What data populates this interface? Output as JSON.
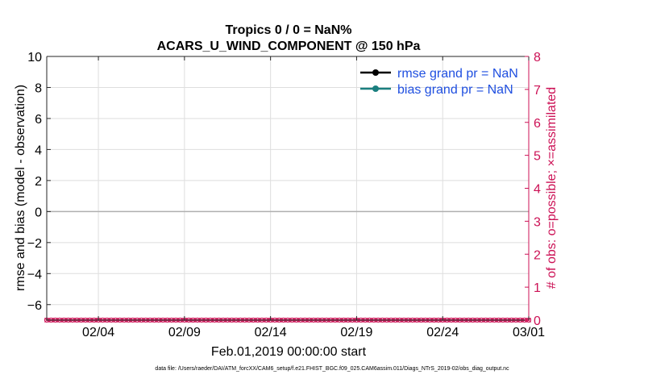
{
  "chart_data": {
    "type": "line",
    "title_line1": "Tropics 0 / 0 = NaN%",
    "title_line2": "ACARS_U_WIND_COMPONENT @ 150 hPa",
    "xlabel": "Feb.01,2019 00:00:00 start",
    "ylabel_left": "rmse and bias (model - observation)",
    "ylabel_right": "# of obs: o=possible; ×=assimilated",
    "xlim": [
      0,
      28
    ],
    "ylim_left": [
      -7,
      10
    ],
    "ylim_right": [
      0,
      8
    ],
    "x_tick_values": [
      3,
      8,
      13,
      18,
      23,
      28
    ],
    "x_tick_labels": [
      "02/04",
      "02/09",
      "02/14",
      "02/19",
      "02/24",
      "03/01"
    ],
    "y_left_ticks": [
      -6,
      -4,
      -2,
      0,
      2,
      4,
      6,
      8,
      10
    ],
    "y_right_ticks": [
      0,
      1,
      2,
      3,
      4,
      5,
      6,
      7,
      8
    ],
    "grid": true,
    "zero_line": 0,
    "legend": [
      {
        "label": "rmse grand pr = NaN",
        "color": "#000000"
      },
      {
        "label": "bias grand pr = NaN",
        "color": "#1a7f7f"
      }
    ],
    "legend_text_color": "#1f4fe0",
    "right_axis_color": "#cc1155",
    "obs_series": {
      "name": "# of obs",
      "color": "#cc1155",
      "x": [
        0,
        0.25,
        0.5,
        0.75,
        1,
        1.25,
        1.5,
        1.75,
        2,
        2.25,
        2.5,
        2.75,
        3,
        3.25,
        3.5,
        3.75,
        4,
        4.25,
        4.5,
        4.75,
        5,
        5.25,
        5.5,
        5.75,
        6,
        6.25,
        6.5,
        6.75,
        7,
        7.25,
        7.5,
        7.75,
        8,
        8.25,
        8.5,
        8.75,
        9,
        9.25,
        9.5,
        9.75,
        10,
        10.25,
        10.5,
        10.75,
        11,
        11.25,
        11.5,
        11.75,
        12,
        12.25,
        12.5,
        12.75,
        13,
        13.25,
        13.5,
        13.75,
        14,
        14.25,
        14.5,
        14.75,
        15,
        15.25,
        15.5,
        15.75,
        16,
        16.25,
        16.5,
        16.75,
        17,
        17.25,
        17.5,
        17.75,
        18,
        18.25,
        18.5,
        18.75,
        19,
        19.25,
        19.5,
        19.75,
        20,
        20.25,
        20.5,
        20.75,
        21,
        21.25,
        21.5,
        21.75,
        22,
        22.25,
        22.5,
        22.75,
        23,
        23.25,
        23.5,
        23.75,
        24,
        24.25,
        24.5,
        24.75,
        25,
        25.25,
        25.5,
        25.75,
        26,
        26.25,
        26.5,
        26.75,
        27,
        27.25,
        27.5,
        27.75,
        28
      ],
      "value": 0
    }
  },
  "footer": {
    "data_file": "data file: /Users/raeder/DAI/ATM_forcXX/CAM6_setup/f.e21.FHIST_BGC.f09_025.CAM6assim.011/Diags_NTrS_2019-02/obs_diag_output.nc"
  }
}
